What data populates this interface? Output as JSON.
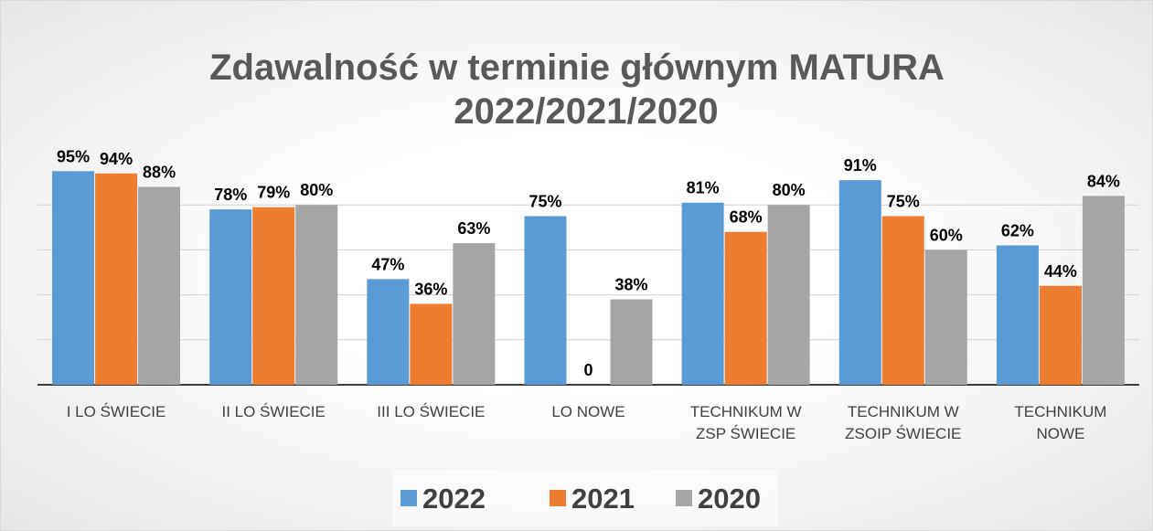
{
  "chart_data": {
    "type": "bar",
    "title": "Zdawalność w terminie głównym MATURA",
    "subtitle": "2022/2021/2020",
    "categories": [
      "I LO ŚWIECIE",
      "II LO ŚWIECIE",
      "III LO ŚWIECIE",
      "LO NOWE",
      "TECHNIKUM W ZSP ŚWIECIE",
      "TECHNIKUM W ZSOIP ŚWIECIE",
      "TECHNIKUM NOWE"
    ],
    "series": [
      {
        "name": "2022",
        "color": "#5b9bd5",
        "values": [
          95,
          78,
          47,
          75,
          81,
          91,
          62
        ],
        "value_labels": [
          "95%",
          "78%",
          "47%",
          "75%",
          "81%",
          "91%",
          "62%"
        ]
      },
      {
        "name": "2021",
        "color": "#ed7d31",
        "values": [
          94,
          79,
          36,
          0,
          68,
          75,
          44
        ],
        "value_labels": [
          "94%",
          "79%",
          "36%",
          "0",
          "68%",
          "75%",
          "44%"
        ]
      },
      {
        "name": "2020",
        "color": "#a5a5a5",
        "values": [
          88,
          80,
          63,
          38,
          80,
          60,
          84
        ],
        "value_labels": [
          "88%",
          "80%",
          "63%",
          "38%",
          "80%",
          "60%",
          "84%"
        ]
      }
    ],
    "ylim": [
      0,
      100
    ],
    "yticks": [
      20,
      40,
      60,
      80
    ],
    "grid": true,
    "legend": "bottom"
  }
}
